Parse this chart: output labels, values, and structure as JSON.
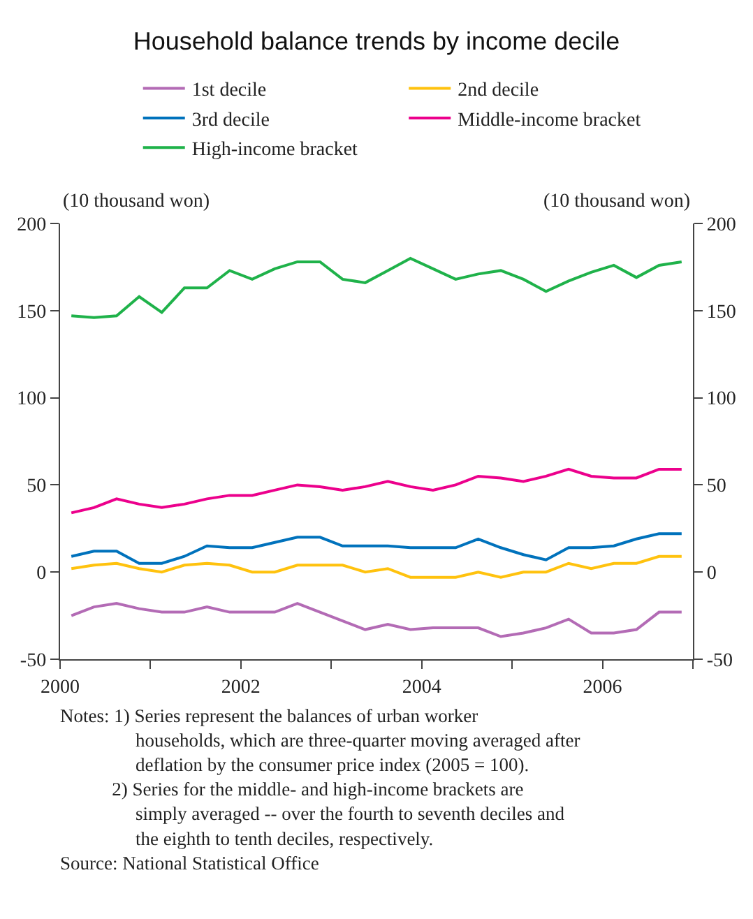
{
  "chart_data": {
    "type": "line",
    "title": "Household balance trends by income decile",
    "ylabel": "(10 thousand won)",
    "y2label": "(10 thousand won)",
    "x": [
      2000.125,
      2000.375,
      2000.625,
      2000.875,
      2001.125,
      2001.375,
      2001.625,
      2001.875,
      2002.125,
      2002.375,
      2002.625,
      2002.875,
      2003.125,
      2003.375,
      2003.625,
      2003.875,
      2004.125,
      2004.375,
      2004.625,
      2004.875,
      2005.125,
      2005.375,
      2005.625,
      2005.875,
      2006.125,
      2006.375,
      2006.625,
      2006.875
    ],
    "series": [
      {
        "name": "1st decile",
        "color": "#b36bb5",
        "values": [
          -25,
          -20,
          -18,
          -21,
          -23,
          -23,
          -20,
          -23,
          -23,
          -23,
          -18,
          -23,
          -28,
          -33,
          -30,
          -33,
          -32,
          -32,
          -32,
          -37,
          -35,
          -32,
          -27,
          -35,
          -35,
          -33,
          -23,
          -23
        ]
      },
      {
        "name": "2nd decile",
        "color": "#ffc20e",
        "values": [
          2,
          4,
          5,
          2,
          0,
          4,
          5,
          4,
          0,
          0,
          4,
          4,
          4,
          0,
          2,
          -3,
          -3,
          -3,
          0,
          -3,
          0,
          0,
          5,
          2,
          5,
          5,
          9,
          9
        ]
      },
      {
        "name": "3rd decile",
        "color": "#0072bc",
        "values": [
          9,
          12,
          12,
          5,
          5,
          9,
          15,
          14,
          14,
          17,
          20,
          20,
          15,
          15,
          15,
          14,
          14,
          14,
          19,
          14,
          10,
          7,
          14,
          14,
          15,
          19,
          22,
          22
        ]
      },
      {
        "name": "Middle-income bracket",
        "color": "#ec008c",
        "values": [
          34,
          37,
          42,
          39,
          37,
          39,
          42,
          44,
          44,
          47,
          50,
          49,
          47,
          49,
          52,
          49,
          47,
          50,
          55,
          54,
          52,
          55,
          59,
          55,
          54,
          54,
          59,
          59
        ]
      },
      {
        "name": "High-income bracket",
        "color": "#1fb24a",
        "values": [
          147,
          146,
          147,
          158,
          149,
          163,
          163,
          173,
          168,
          174,
          178,
          178,
          168,
          166,
          173,
          180,
          174,
          168,
          171,
          173,
          168,
          161,
          167,
          172,
          176,
          169,
          176,
          178
        ]
      }
    ],
    "xlim": [
      2000,
      2007
    ],
    "xticks": [
      2000,
      {
        "value": 2001,
        "label": null
      },
      2002,
      {
        "value": 2003,
        "label": null
      },
      2004,
      {
        "value": 2005,
        "label": null
      },
      2006,
      {
        "value": 2007,
        "label": null
      }
    ],
    "ylim": [
      -50,
      200
    ],
    "yticks": [
      -50,
      0,
      50,
      100,
      150,
      200
    ],
    "y2lim": [
      -50,
      200
    ],
    "y2ticks": [
      -50,
      0,
      50,
      100,
      150,
      200
    ],
    "legend": "top",
    "marker": "none",
    "line_style": "solid",
    "annotations": [
      "Notes: 1) Series represent the balances of urban worker households, which are three-quarter moving averaged after deflation by the consumer price index (2005 = 100).",
      "2) Series for the middle- and high-income brackets are simply averaged -- over the fourth to seventh deciles and the eighth to tenth deciles, respectively.",
      "Source: National Statistical Office"
    ]
  }
}
